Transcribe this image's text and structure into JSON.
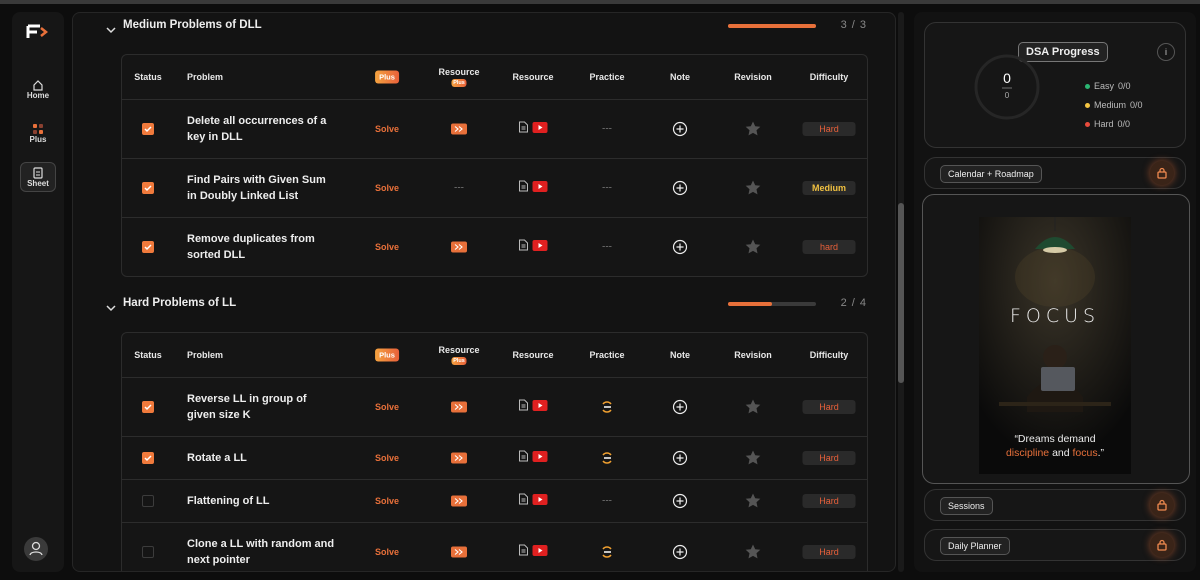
{
  "sidebar": {
    "nav": [
      "Home",
      "Plus",
      "Sheet"
    ]
  },
  "sections": [
    {
      "title": "Medium Problems of DLL",
      "progress": {
        "value": 3,
        "max": 3,
        "label": "3 / 3"
      },
      "columns": [
        "Status",
        "Problem",
        "Plus",
        "Resource",
        "Resource",
        "Practice",
        "Note",
        "Revision",
        "Difficulty"
      ],
      "column_badge": "Plus",
      "rows": [
        {
          "done": true,
          "problem": "Delete all occurrences of a key in DLL",
          "action": "Solve",
          "plus_resource": true,
          "practice": "---",
          "difficulty": "Hard"
        },
        {
          "done": true,
          "problem": "Find Pairs with Given Sum in Doubly Linked List",
          "action": "Solve",
          "plus_resource": "---",
          "practice": "---",
          "difficulty": "Medium"
        },
        {
          "done": true,
          "problem": "Remove duplicates from sorted DLL",
          "action": "Solve",
          "plus_resource": true,
          "practice": "---",
          "difficulty": "hard"
        }
      ]
    },
    {
      "title": "Hard Problems of LL",
      "progress": {
        "value": 2,
        "max": 4,
        "label": "2 / 4"
      },
      "columns": [
        "Status",
        "Problem",
        "Plus",
        "Resource",
        "Resource",
        "Practice",
        "Note",
        "Revision",
        "Difficulty"
      ],
      "column_badge": "Plus",
      "rows": [
        {
          "done": true,
          "problem": "Reverse LL in group of given size K",
          "action": "Solve",
          "plus_resource": true,
          "practice": true,
          "difficulty": "Hard"
        },
        {
          "done": true,
          "problem": "Rotate a LL",
          "action": "Solve",
          "plus_resource": true,
          "practice": true,
          "difficulty": "Hard"
        },
        {
          "done": false,
          "problem": "Flattening of LL",
          "action": "Solve",
          "plus_resource": true,
          "practice": "---",
          "difficulty": "Hard"
        },
        {
          "done": false,
          "problem": "Clone a LL with random and next pointer",
          "action": "Solve",
          "plus_resource": true,
          "practice": true,
          "difficulty": "Hard"
        }
      ]
    }
  ],
  "progress_card": {
    "title": "DSA Progress",
    "info": "i",
    "solved": 0,
    "total": 0,
    "levels": [
      {
        "name": "Easy",
        "count": "0/0",
        "color": "#2bb673"
      },
      {
        "name": "Medium",
        "count": "0/0",
        "color": "#f5c542"
      },
      {
        "name": "Hard",
        "count": "0/0",
        "color": "#e84b3c"
      }
    ]
  },
  "calendar": "Calendar + Roadmap",
  "focus": {
    "word": "FOCUS",
    "quote_line1": "“Dreams demand",
    "quote_line2": [
      "discipline",
      " and ",
      "focus",
      ".”"
    ]
  },
  "sessions": "Sessions",
  "planner": "Daily Planner"
}
